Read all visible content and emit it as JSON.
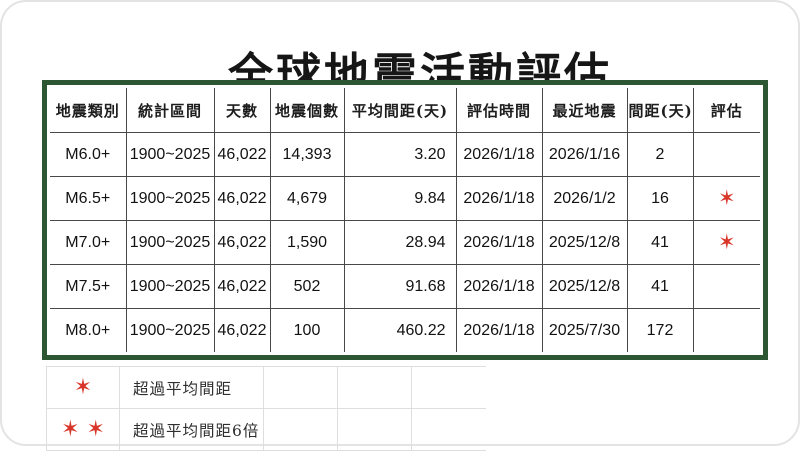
{
  "title": "全球地震活動評估",
  "table": {
    "headers": [
      "地震類別",
      "統計區間",
      "天數",
      "地震個數",
      "平均間距(天)",
      "評估時間",
      "最近地震",
      "間距(天)",
      "評估"
    ],
    "rows": [
      {
        "category": "M6.0+",
        "period": "1900~2025",
        "days": "46,022",
        "count": "14,393",
        "avg_interval": "3.20",
        "eval_time": "2026/1/18",
        "last_quake": "2026/1/16",
        "interval": "2",
        "stars": 0
      },
      {
        "category": "M6.5+",
        "period": "1900~2025",
        "days": "46,022",
        "count": "4,679",
        "avg_interval": "9.84",
        "eval_time": "2026/1/18",
        "last_quake": "2026/1/2",
        "interval": "16",
        "stars": 1
      },
      {
        "category": "M7.0+",
        "period": "1900~2025",
        "days": "46,022",
        "count": "1,590",
        "avg_interval": "28.94",
        "eval_time": "2026/1/18",
        "last_quake": "2025/12/8",
        "interval": "41",
        "stars": 1
      },
      {
        "category": "M7.5+",
        "period": "1900~2025",
        "days": "46,022",
        "count": "502",
        "avg_interval": "91.68",
        "eval_time": "2026/1/18",
        "last_quake": "2025/12/8",
        "interval": "41",
        "stars": 0
      },
      {
        "category": "M8.0+",
        "period": "1900~2025",
        "days": "46,022",
        "count": "100",
        "avg_interval": "460.22",
        "eval_time": "2026/1/18",
        "last_quake": "2025/7/30",
        "interval": "172",
        "stars": 0
      }
    ]
  },
  "legend": {
    "items": [
      {
        "stars": 1,
        "label": "超過平均間距"
      },
      {
        "stars": 2,
        "label": "超過平均間距6倍"
      }
    ]
  },
  "icons": {
    "star": "✶"
  },
  "colors": {
    "table_border": "#2d5733",
    "star": "#d8362a",
    "cell_grid": "#484848",
    "legend_grid": "#dedede"
  }
}
